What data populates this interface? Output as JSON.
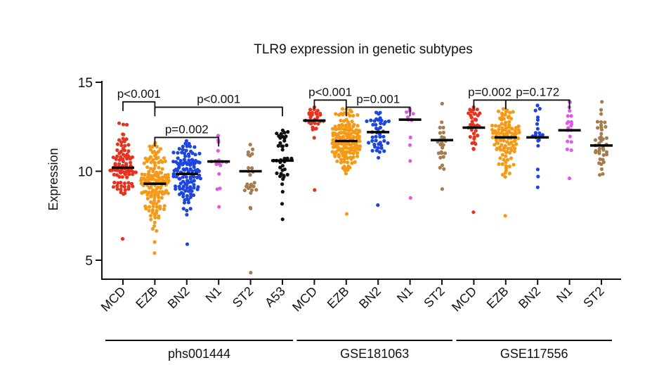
{
  "chart_data": {
    "type": "scatter",
    "title": "TLR9 expression in genetic subtypes",
    "xlabel": "",
    "ylabel": "Expression",
    "ylim": [
      4.0,
      15.0
    ],
    "yticks": [
      5,
      10,
      15
    ],
    "groups": [
      {
        "name": "phs001444",
        "categories": [
          "MCD",
          "EZB",
          "BN2",
          "N1",
          "ST2",
          "A53"
        ]
      },
      {
        "name": "GSE181063",
        "categories": [
          "MCD",
          "EZB",
          "BN2",
          "N1",
          "ST2"
        ]
      },
      {
        "name": "GSE117556",
        "categories": [
          "MCD",
          "EZB",
          "BN2",
          "N1",
          "ST2"
        ]
      }
    ],
    "colors": {
      "MCD": "#e8321e",
      "EZB": "#f59a16",
      "BN2": "#1d45e0",
      "N1": "#e05ae6",
      "ST2": "#a57c4d",
      "A53": "#111111"
    },
    "series": [
      {
        "group": 0,
        "subtype": "MCD",
        "n": 90,
        "median": 10.2,
        "min": 6.2,
        "max": 12.7,
        "sd": 1.0
      },
      {
        "group": 0,
        "subtype": "EZB",
        "n": 150,
        "median": 9.3,
        "min": 5.4,
        "max": 11.6,
        "sd": 1.2
      },
      {
        "group": 0,
        "subtype": "BN2",
        "n": 120,
        "median": 9.85,
        "min": 5.9,
        "max": 11.7,
        "sd": 0.95
      },
      {
        "group": 0,
        "subtype": "N1",
        "n": 16,
        "median": 10.55,
        "min": 8.0,
        "max": 12.0,
        "sd": 0.9
      },
      {
        "group": 0,
        "subtype": "ST2",
        "n": 25,
        "median": 10.0,
        "min": 4.3,
        "max": 11.5,
        "sd": 1.1
      },
      {
        "group": 0,
        "subtype": "A53",
        "n": 40,
        "median": 10.6,
        "min": 7.3,
        "max": 12.3,
        "sd": 1.1
      },
      {
        "group": 1,
        "subtype": "MCD",
        "n": 30,
        "median": 12.85,
        "min": 8.95,
        "max": 13.6,
        "sd": 0.55
      },
      {
        "group": 1,
        "subtype": "EZB",
        "n": 160,
        "median": 11.7,
        "min": 7.6,
        "max": 13.5,
        "sd": 0.9
      },
      {
        "group": 1,
        "subtype": "BN2",
        "n": 45,
        "median": 12.2,
        "min": 8.1,
        "max": 13.3,
        "sd": 0.65
      },
      {
        "group": 1,
        "subtype": "N1",
        "n": 12,
        "median": 12.9,
        "min": 8.5,
        "max": 13.5,
        "sd": 1.2
      },
      {
        "group": 1,
        "subtype": "ST2",
        "n": 25,
        "median": 11.75,
        "min": 9.0,
        "max": 13.8,
        "sd": 0.9
      },
      {
        "group": 2,
        "subtype": "MCD",
        "n": 35,
        "median": 12.45,
        "min": 7.7,
        "max": 13.6,
        "sd": 1.0
      },
      {
        "group": 2,
        "subtype": "EZB",
        "n": 110,
        "median": 11.9,
        "min": 7.5,
        "max": 13.5,
        "sd": 0.9
      },
      {
        "group": 2,
        "subtype": "BN2",
        "n": 20,
        "median": 11.9,
        "min": 9.1,
        "max": 13.7,
        "sd": 0.9
      },
      {
        "group": 2,
        "subtype": "N1",
        "n": 20,
        "median": 12.3,
        "min": 9.6,
        "max": 13.9,
        "sd": 1.0
      },
      {
        "group": 2,
        "subtype": "ST2",
        "n": 40,
        "median": 11.45,
        "min": 9.8,
        "max": 13.9,
        "sd": 0.8
      }
    ],
    "comparisons": [
      {
        "group": 0,
        "from": "MCD",
        "to": "EZB",
        "label": "p<0.001",
        "height": 13.9
      },
      {
        "group": 0,
        "from": "EZB",
        "to": "A53",
        "label": "p<0.001",
        "height": 13.6
      },
      {
        "group": 0,
        "from": "EZB",
        "to": "N1",
        "label": "p=0.002",
        "height": 11.9
      },
      {
        "group": 1,
        "from": "MCD",
        "to": "EZB",
        "label": "p<0.001",
        "height": 14.0
      },
      {
        "group": 1,
        "from": "EZB",
        "to": "N1",
        "label": "p=0.001",
        "height": 13.6
      },
      {
        "group": 2,
        "from": "MCD",
        "to": "EZB",
        "label": "p=0.002",
        "height": 14.0
      },
      {
        "group": 2,
        "from": "EZB",
        "to": "N1",
        "label": "p=0.172",
        "height": 14.0
      }
    ]
  }
}
